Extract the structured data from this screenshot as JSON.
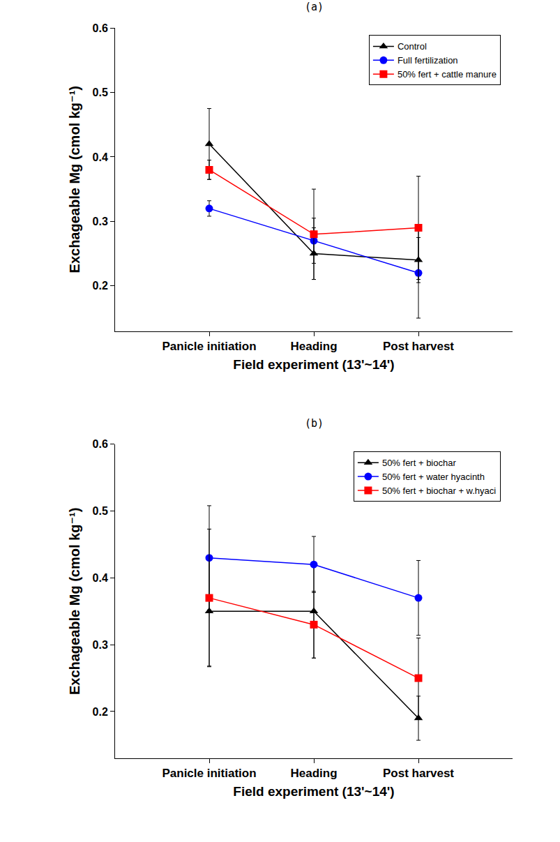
{
  "chart_data": [
    {
      "type": "line",
      "title": "(a)",
      "x_label": "Field experiment (13'~14')",
      "y_label": "Exchageable Mg (cmol kg⁻¹)",
      "categories": [
        "Panicle initiation",
        "Heading",
        "Post harvest"
      ],
      "series": [
        {
          "name": "Control",
          "color": "#000000",
          "marker": "triangle-up",
          "values": [
            0.42,
            0.25,
            0.24
          ],
          "errors": [
            0.055,
            0.04,
            0.035
          ]
        },
        {
          "name": "Full fertilization",
          "color": "#0000ff",
          "marker": "circle",
          "values": [
            0.32,
            0.27,
            0.22
          ],
          "errors": [
            0.012,
            0.035,
            0.07
          ]
        },
        {
          "name": "50% fert + cattle manure",
          "color": "#ff0000",
          "marker": "square",
          "values": [
            0.38,
            0.28,
            0.29
          ],
          "errors": [
            0.015,
            0.07,
            0.08
          ]
        }
      ],
      "ylim": [
        0.13,
        0.6
      ],
      "yticks": [
        0.2,
        0.3,
        0.4,
        0.5,
        0.6
      ],
      "grid": false,
      "legend": "upper right"
    },
    {
      "type": "line",
      "title": "(b)",
      "x_label": "Field experiment (13'~14')",
      "y_label": "Exchageable Mg (cmol kg⁻¹)",
      "categories": [
        "Panicle initiation",
        "Heading",
        "Post harvest"
      ],
      "series": [
        {
          "name": "50% fert + biochar",
          "color": "#000000",
          "marker": "triangle-up",
          "values": [
            0.35,
            0.35,
            0.19
          ],
          "errors": [
            0.082,
            0.07,
            0.033
          ]
        },
        {
          "name": "50% fert + water hyacinth",
          "color": "#0000ff",
          "marker": "circle",
          "values": [
            0.43,
            0.42,
            0.37
          ],
          "errors": [
            0.078,
            0.042,
            0.056
          ]
        },
        {
          "name": "50% fert + biochar + w.hyaci",
          "color": "#ff0000",
          "marker": "square",
          "values": [
            0.37,
            0.33,
            0.25
          ],
          "errors": [
            0.103,
            0.05,
            0.06
          ]
        }
      ],
      "ylim": [
        0.13,
        0.6
      ],
      "yticks": [
        0.2,
        0.3,
        0.4,
        0.5,
        0.6
      ],
      "grid": false,
      "legend": "upper right"
    }
  ]
}
